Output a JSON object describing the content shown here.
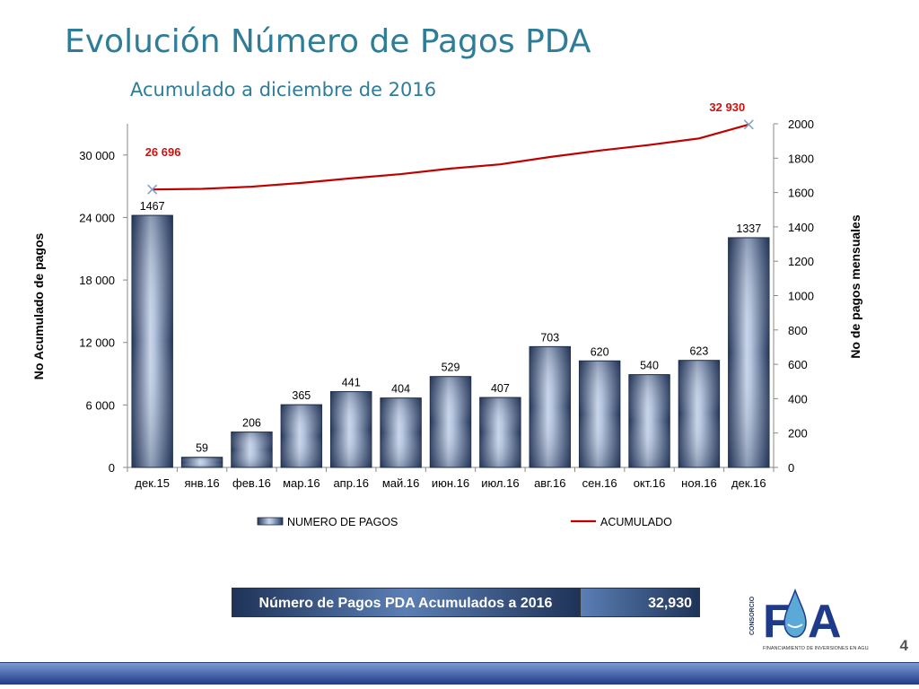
{
  "title": "Evolución Número de Pagos PDA",
  "subtitle": "Acumulado a diciembre de 2016",
  "chart_data": {
    "type": "bar",
    "categories": [
      "дек.15",
      "янв.16",
      "фев.16",
      "мар.16",
      "апр.16",
      "май.16",
      "июн.16",
      "июл.16",
      "авг.16",
      "сен.16",
      "окт.16",
      "ноя.16",
      "дек.16"
    ],
    "series": [
      {
        "name": "NUMERO DE PAGOS",
        "type": "bar",
        "axis": "right",
        "values": [
          1467,
          59,
          206,
          365,
          441,
          404,
          529,
          407,
          703,
          620,
          540,
          623,
          1337
        ]
      },
      {
        "name": "ACUMULADO",
        "type": "line",
        "axis": "left",
        "values": [
          26696,
          26755,
          26961,
          27326,
          27767,
          28171,
          28700,
          29107,
          29810,
          30430,
          30970,
          31593,
          32930
        ]
      }
    ],
    "bar_labels": [
      "1467",
      "59",
      "206",
      "365",
      "441",
      "404",
      "529",
      "407",
      "703",
      "620",
      "540",
      "623",
      "1337"
    ],
    "line_labels": {
      "first": "26 696",
      "last": "32 930"
    },
    "ylabel_left": "No Acumulado de pagos",
    "ylabel_right": "No de pagos mensuales",
    "ylim_left": [
      0,
      33000
    ],
    "ylim_right": [
      0,
      2000
    ],
    "yticks_left": [
      "0",
      "6 000",
      "12 000",
      "18 000",
      "24 000",
      "30 000"
    ],
    "yticks_right": [
      "0",
      "200",
      "400",
      "600",
      "800",
      "1000",
      "1200",
      "1400",
      "1600",
      "1800",
      "2000"
    ],
    "legend": [
      "NUMERO DE PAGOS",
      "ACUMULADO"
    ],
    "legend_position": "bottom",
    "grid": false,
    "colors": {
      "bar_dark": "#2b3f66",
      "bar_light": "#c5d3e8",
      "line": "#c00000",
      "marker": "#7f9fc6"
    }
  },
  "summary": {
    "label": "Número de Pagos PDA Acumulados a 2016",
    "value": "32,930"
  },
  "logo": {
    "text": "FIA",
    "side_text": "CONSORCIO",
    "tagline": "FINANCIAMIENTO DE INVERSIONES EN AGUA"
  },
  "page_number": "4"
}
